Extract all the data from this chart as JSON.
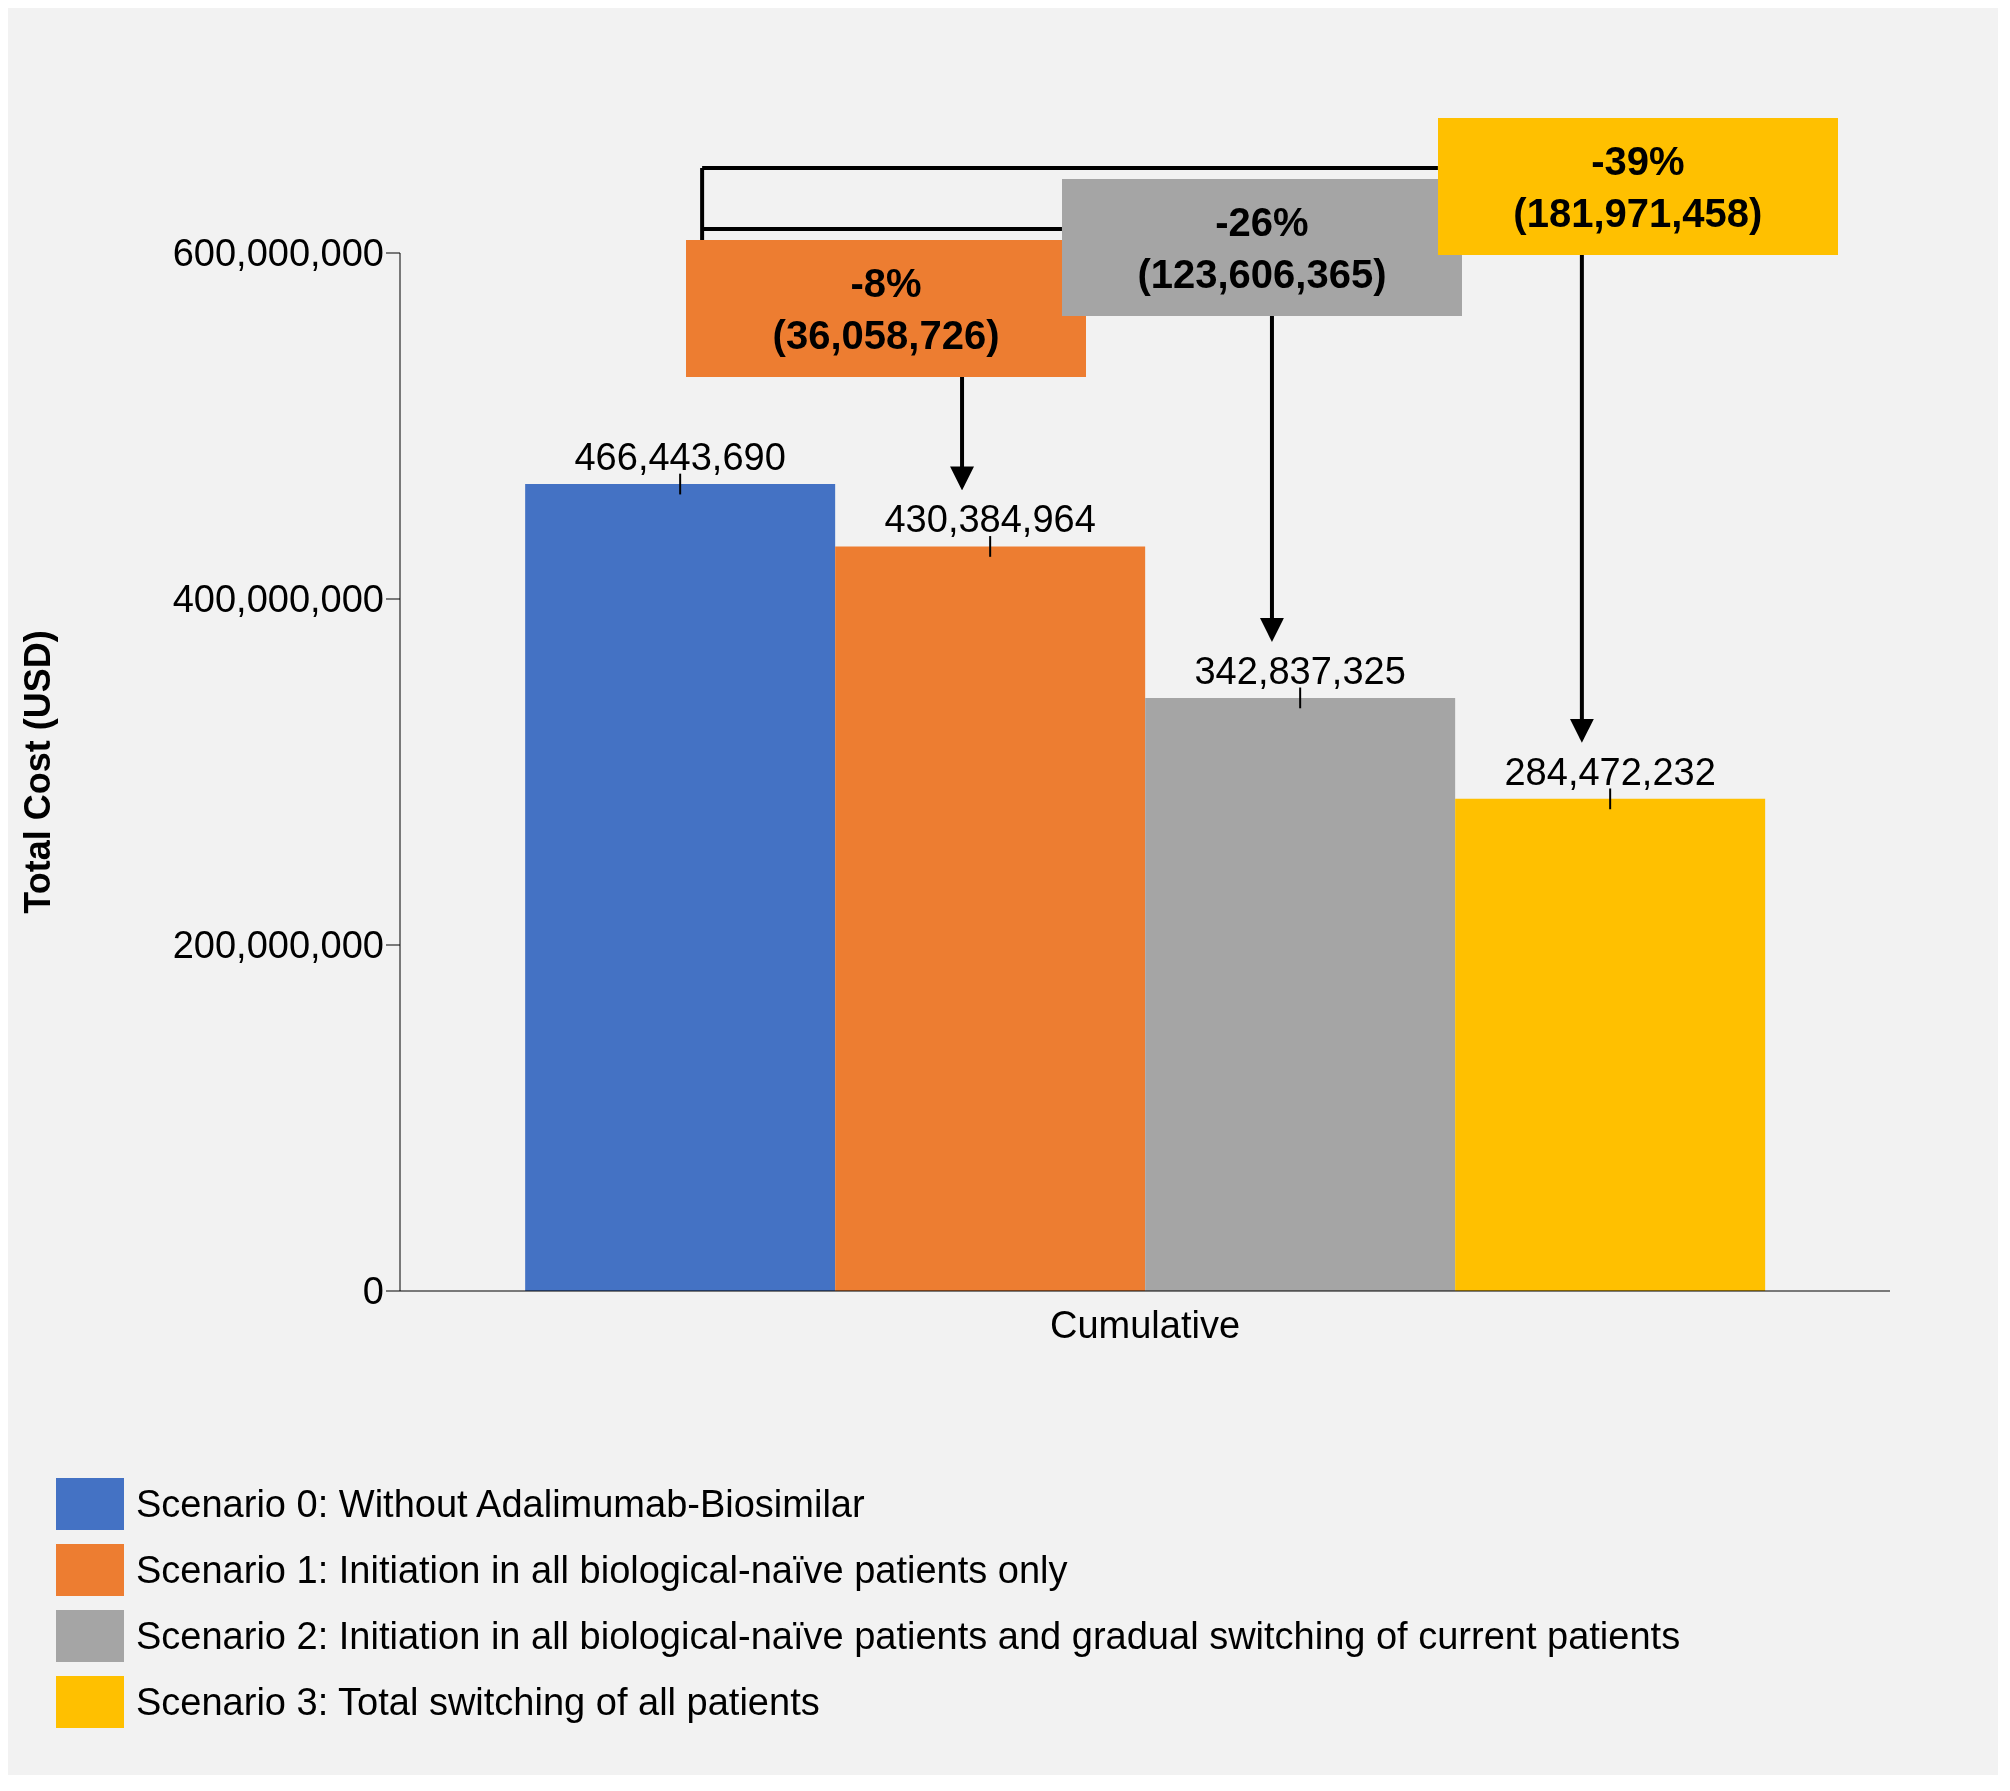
{
  "chart_data": {
    "type": "bar",
    "ylabel": "Total Cost (USD)",
    "categories": [
      "Cumulative"
    ],
    "series": [
      {
        "name": "Scenario 0: Without Adalimumab-Biosimilar",
        "color": "#4472c4",
        "values": [
          466443690
        ],
        "value_labels": [
          "466,443,690"
        ],
        "errors": [
          6000000
        ]
      },
      {
        "name": "Scenario 1: Initiation in all biological-naïve patients only",
        "color": "#ed7d31",
        "values": [
          430384964
        ],
        "value_labels": [
          "430,384,964"
        ],
        "errors": [
          6000000
        ]
      },
      {
        "name": "Scenario 2: Initiation in all biological-naïve patients and gradual switching of current patients",
        "color": "#a5a5a5",
        "values": [
          342837325
        ],
        "value_labels": [
          "342,837,325"
        ],
        "errors": [
          6000000
        ]
      },
      {
        "name": "Scenario 3: Total switching of all patients",
        "color": "#ffc000",
        "values": [
          284472232
        ],
        "value_labels": [
          "284,472,232"
        ],
        "errors": [
          6000000
        ]
      }
    ],
    "ylim": [
      0,
      600000000
    ],
    "yticks": [
      {
        "value": 0,
        "label": "0"
      },
      {
        "value": 200000000,
        "label": "200,000,000"
      },
      {
        "value": 400000000,
        "label": "400,000,000"
      },
      {
        "value": 600000000,
        "label": "600,000,000"
      }
    ],
    "annotations": [
      "-8%\n(36,058,726)",
      "-26%\n(123,606,365)",
      "-39%\n(181,971,458)"
    ],
    "grid": false,
    "legend": "bottom"
  }
}
